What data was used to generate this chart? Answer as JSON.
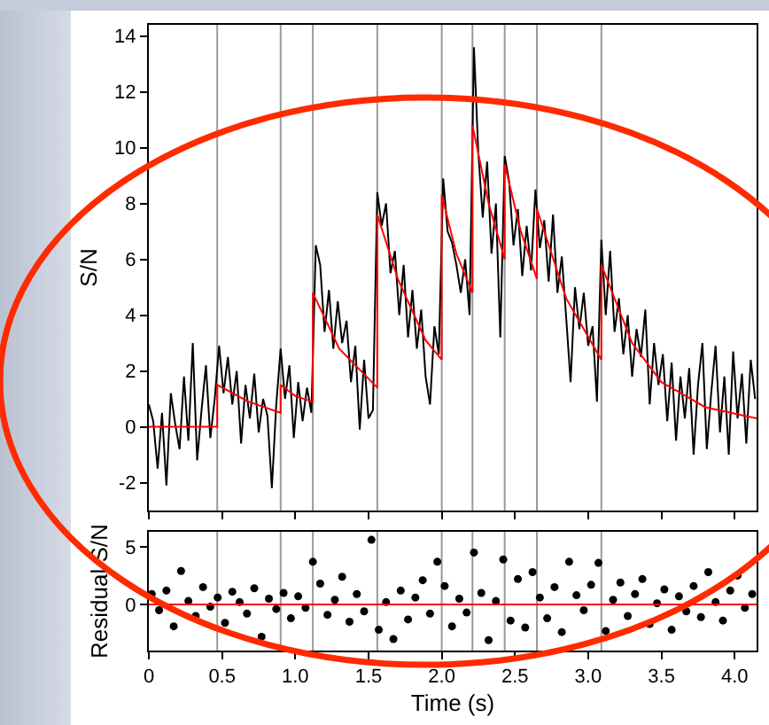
{
  "chart_data": [
    {
      "type": "line",
      "ylabel": "S/N",
      "xlim": [
        0,
        4.15
      ],
      "ylim": [
        -3,
        14.4
      ],
      "yticks": [
        -2,
        0,
        2,
        4,
        6,
        8,
        10,
        12,
        14
      ],
      "xticks": [
        0,
        0.5,
        1,
        1.5,
        2,
        2.5,
        3,
        3.5,
        4
      ],
      "tick_labels": "y",
      "marker": "none",
      "line_style": "solid",
      "series": [
        {
          "color": "#000000",
          "x": [
            0,
            0.03,
            0.06,
            0.09,
            0.12,
            0.15,
            0.18,
            0.21,
            0.24,
            0.27,
            0.3,
            0.33,
            0.36,
            0.39,
            0.42,
            0.45,
            0.48,
            0.51,
            0.54,
            0.57,
            0.6,
            0.63,
            0.66,
            0.69,
            0.72,
            0.75,
            0.78,
            0.81,
            0.84,
            0.87,
            0.9,
            0.93,
            0.96,
            0.99,
            1.02,
            1.05,
            1.08,
            1.11,
            1.14,
            1.17,
            1.2,
            1.23,
            1.26,
            1.29,
            1.32,
            1.35,
            1.38,
            1.41,
            1.44,
            1.47,
            1.5,
            1.53,
            1.56,
            1.59,
            1.62,
            1.65,
            1.68,
            1.71,
            1.74,
            1.77,
            1.8,
            1.83,
            1.86,
            1.89,
            1.92,
            1.95,
            1.98,
            2.01,
            2.04,
            2.07,
            2.1,
            2.13,
            2.16,
            2.19,
            2.22,
            2.25,
            2.28,
            2.31,
            2.34,
            2.37,
            2.4,
            2.43,
            2.46,
            2.49,
            2.52,
            2.55,
            2.58,
            2.61,
            2.64,
            2.67,
            2.7,
            2.73,
            2.76,
            2.79,
            2.82,
            2.85,
            2.88,
            2.91,
            2.94,
            2.97,
            3,
            3.03,
            3.06,
            3.09,
            3.12,
            3.15,
            3.18,
            3.21,
            3.24,
            3.27,
            3.3,
            3.33,
            3.36,
            3.39,
            3.42,
            3.45,
            3.48,
            3.51,
            3.54,
            3.57,
            3.6,
            3.63,
            3.66,
            3.69,
            3.72,
            3.75,
            3.78,
            3.81,
            3.84,
            3.87,
            3.9,
            3.93,
            3.96,
            3.99,
            4.02,
            4.05,
            4.08,
            4.11,
            4.14
          ],
          "values": [
            0.8,
            0.2,
            -1.5,
            0.5,
            -2.1,
            1.2,
            0.1,
            -0.8,
            1.8,
            -0.5,
            3.0,
            -1.2,
            0.6,
            2.2,
            -0.4,
            1.0,
            2.9,
            1.2,
            2.5,
            0.8,
            2.0,
            -0.6,
            1.5,
            0.3,
            1.9,
            -0.2,
            1.0,
            0.4,
            -2.2,
            0.8,
            2.8,
            1.0,
            2.2,
            -0.4,
            1.6,
            0.2,
            1.4,
            0.5,
            6.5,
            5.8,
            3.4,
            4.9,
            2.8,
            4.5,
            3.0,
            3.8,
            1.6,
            2.9,
            -0.1,
            2.4,
            0.3,
            0.6,
            8.4,
            7.2,
            8.0,
            5.5,
            6.3,
            4.0,
            5.8,
            3.2,
            4.9,
            2.8,
            4.2,
            1.8,
            0.8,
            3.6,
            2.6,
            8.9,
            7.0,
            6.6,
            5.8,
            4.8,
            6.0,
            4.0,
            13.6,
            9.8,
            7.5,
            9.5,
            6.2,
            8.0,
            3.2,
            9.7,
            8.8,
            6.5,
            7.8,
            5.4,
            7.2,
            5.6,
            8.5,
            6.4,
            7.4,
            5.2,
            7.6,
            4.8,
            6.1,
            3.9,
            1.6,
            5.0,
            3.5,
            4.8,
            2.9,
            3.6,
            0.9,
            6.7,
            4.0,
            6.3,
            3.4,
            4.6,
            2.6,
            4.0,
            1.8,
            3.5,
            2.5,
            4.2,
            0.8,
            3.0,
            1.5,
            2.6,
            0.2,
            2.3,
            -0.5,
            1.8,
            0.3,
            2.1,
            -1.0,
            1.5,
            3.0,
            -0.8,
            1.2,
            2.9,
            -0.2,
            1.8,
            -1.0,
            2.7,
            0.3,
            1.9,
            -0.6,
            2.4,
            1.0
          ]
        },
        {
          "color": "#ff0000",
          "x": [
            0,
            0.467,
            0.467,
            0.68,
            0.9,
            0.9,
            1.0,
            1.12,
            1.12,
            1.3,
            1.56,
            1.56,
            1.7,
            1.89,
            2.0,
            2.0,
            2.1,
            2.21,
            2.21,
            2.32,
            2.43,
            2.43,
            2.54,
            2.65,
            2.65,
            2.85,
            3.09,
            3.09,
            3.3,
            3.5,
            3.8,
            4.15
          ],
          "values": [
            0,
            0,
            1.5,
            0.9,
            0.5,
            1.5,
            1.1,
            0.9,
            4.8,
            2.8,
            1.4,
            7.6,
            5.3,
            3.1,
            2.4,
            8.3,
            6.2,
            4.8,
            10.8,
            8.0,
            6.0,
            9.4,
            7.0,
            5.3,
            7.8,
            4.6,
            2.4,
            5.8,
            3.0,
            1.6,
            0.7,
            0.3
          ]
        }
      ],
      "ref_lines": [
        {
          "axis": "x",
          "value": 0.467,
          "color": "#999999"
        },
        {
          "axis": "x",
          "value": 0.9,
          "color": "#999999"
        },
        {
          "axis": "x",
          "value": 1.12,
          "color": "#999999"
        },
        {
          "axis": "x",
          "value": 1.56,
          "color": "#999999"
        },
        {
          "axis": "x",
          "value": 2.0,
          "color": "#999999"
        },
        {
          "axis": "x",
          "value": 2.21,
          "color": "#999999"
        },
        {
          "axis": "x",
          "value": 2.43,
          "color": "#999999"
        },
        {
          "axis": "x",
          "value": 2.65,
          "color": "#999999"
        },
        {
          "axis": "x",
          "value": 3.09,
          "color": "#999999"
        }
      ]
    },
    {
      "type": "scatter",
      "xlabel": "Time (s)",
      "ylabel": "Residual S/N",
      "xlim": [
        0,
        4.15
      ],
      "ylim": [
        -4,
        6.3
      ],
      "yticks": [
        0,
        5
      ],
      "xticks": [
        0,
        {
          "value": 0.5,
          "label": "0.5"
        },
        {
          "value": 1,
          "label": "1.0"
        },
        {
          "value": 1.5,
          "label": "1.5"
        },
        {
          "value": 2,
          "label": "2.0"
        },
        {
          "value": 2.5,
          "label": "2.5"
        },
        {
          "value": 3,
          "label": "3.0"
        },
        {
          "value": 3.5,
          "label": "3.5"
        },
        {
          "value": 4,
          "label": "4.0"
        }
      ],
      "marker": "circle",
      "series": [
        {
          "color": "#000000",
          "x": [
            0.02,
            0.07,
            0.12,
            0.17,
            0.22,
            0.27,
            0.32,
            0.37,
            0.42,
            0.47,
            0.52,
            0.57,
            0.62,
            0.67,
            0.72,
            0.77,
            0.82,
            0.87,
            0.92,
            0.97,
            1.02,
            1.07,
            1.12,
            1.17,
            1.22,
            1.27,
            1.32,
            1.37,
            1.42,
            1.47,
            1.52,
            1.57,
            1.62,
            1.67,
            1.72,
            1.77,
            1.82,
            1.87,
            1.92,
            1.97,
            2.02,
            2.07,
            2.12,
            2.17,
            2.22,
            2.27,
            2.32,
            2.37,
            2.42,
            2.47,
            2.52,
            2.57,
            2.62,
            2.67,
            2.72,
            2.77,
            2.82,
            2.87,
            2.92,
            2.97,
            3.02,
            3.07,
            3.12,
            3.17,
            3.22,
            3.27,
            3.32,
            3.37,
            3.42,
            3.47,
            3.52,
            3.57,
            3.62,
            3.67,
            3.72,
            3.77,
            3.82,
            3.87,
            3.92,
            3.97,
            4.02,
            4.07,
            4.12
          ],
          "values": [
            0.9,
            -0.5,
            1.2,
            -1.9,
            2.9,
            0.3,
            -1.0,
            1.5,
            -0.2,
            0.6,
            -1.6,
            1.1,
            0.2,
            -0.8,
            1.4,
            -2.8,
            0.5,
            -0.4,
            1.0,
            -1.2,
            0.7,
            -0.3,
            3.7,
            1.8,
            -0.9,
            0.4,
            2.4,
            -1.5,
            0.9,
            -0.6,
            5.6,
            -2.2,
            0.2,
            -3.0,
            1.2,
            -1.3,
            0.6,
            2.1,
            -0.8,
            3.7,
            1.6,
            -1.9,
            0.5,
            -0.7,
            4.5,
            1.0,
            -3.1,
            0.3,
            3.9,
            -1.4,
            2.2,
            -2.0,
            2.8,
            0.6,
            -1.2,
            1.5,
            -2.4,
            3.7,
            0.8,
            -0.5,
            1.7,
            3.6,
            -2.3,
            0.4,
            1.9,
            -1.0,
            0.9,
            2.2,
            -1.7,
            0.1,
            1.3,
            -2.2,
            0.7,
            -0.6,
            1.6,
            -1.1,
            2.8,
            0.2,
            -1.4,
            1.2,
            2.5,
            -0.3,
            0.9
          ]
        }
      ],
      "ref_lines": [
        {
          "axis": "y",
          "value": 0,
          "color": "#ff0000"
        },
        {
          "axis": "x",
          "value": 0.467,
          "color": "#999999"
        },
        {
          "axis": "x",
          "value": 0.9,
          "color": "#999999"
        },
        {
          "axis": "x",
          "value": 1.12,
          "color": "#999999"
        },
        {
          "axis": "x",
          "value": 1.56,
          "color": "#999999"
        },
        {
          "axis": "x",
          "value": 2.0,
          "color": "#999999"
        },
        {
          "axis": "x",
          "value": 2.21,
          "color": "#999999"
        },
        {
          "axis": "x",
          "value": 2.43,
          "color": "#999999"
        },
        {
          "axis": "x",
          "value": 2.65,
          "color": "#999999"
        },
        {
          "axis": "x",
          "value": 3.09,
          "color": "#999999"
        }
      ]
    }
  ]
}
